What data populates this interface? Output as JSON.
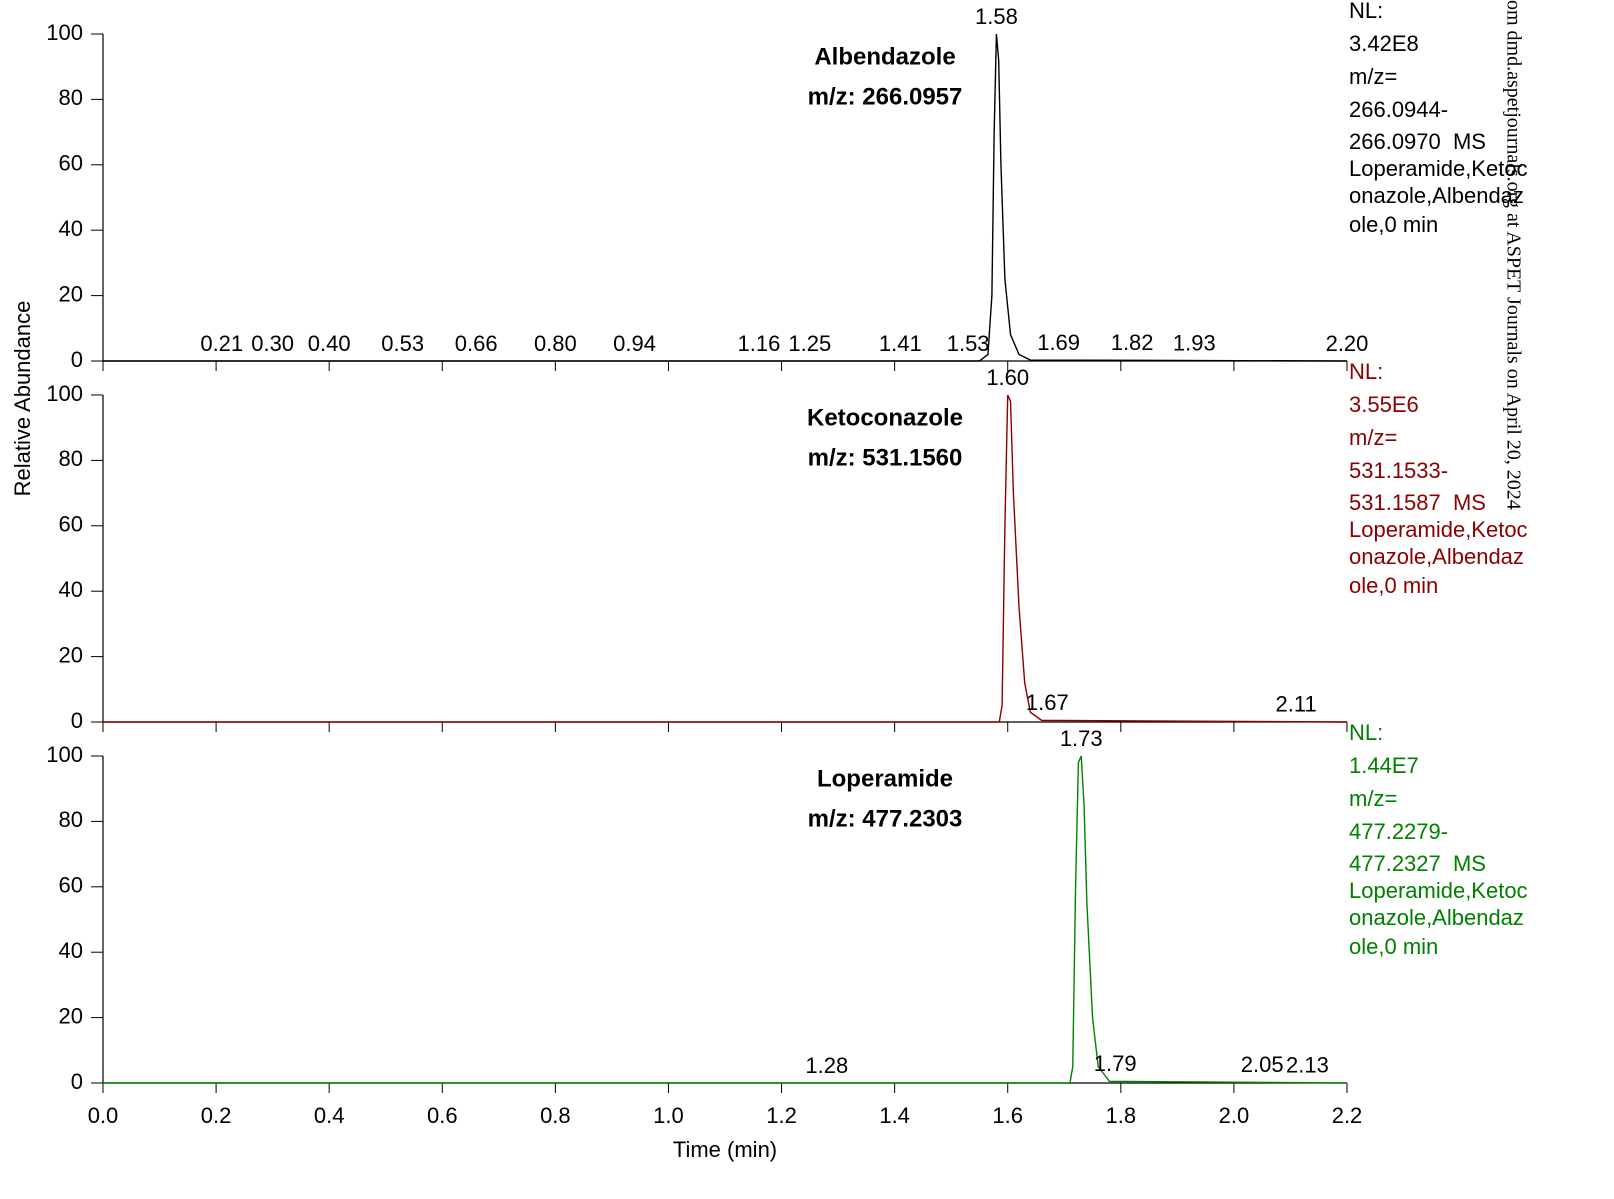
{
  "chart_data": [
    {
      "type": "line",
      "title": "Albendazole",
      "subtitle": "m/z: 266.0957",
      "color": "#000000",
      "nl_text": [
        "NL:",
        "3.42E8",
        "m/z=",
        "266.0944-",
        "266.0970  MS",
        "Loperamide,Ketoc",
        "onazole,Albendaz",
        "ole,0 min"
      ],
      "x": [
        0,
        1.55,
        1.565,
        1.572,
        1.576,
        1.58,
        1.584,
        1.588,
        1.595,
        1.605,
        1.62,
        1.64,
        2.2
      ],
      "values": [
        0,
        0,
        2,
        20,
        70,
        100,
        92,
        60,
        25,
        8,
        2,
        0.3,
        0
      ],
      "peaks": [
        {
          "value": 0.21,
          "label": "0.21"
        },
        {
          "value": 0.3,
          "label": "0.30"
        },
        {
          "value": 0.4,
          "label": "0.40"
        },
        0.53,
        0.66,
        {
          "value": 0.8,
          "label": "0.80"
        },
        0.94,
        1.16,
        1.25,
        1.41,
        1.53,
        1.58,
        1.69,
        1.82,
        1.93,
        {
          "value": 2.2,
          "label": "2.20"
        }
      ],
      "xlim": [
        0,
        2.2
      ],
      "ylim": [
        0,
        100
      ],
      "yticks": [
        0,
        20,
        40,
        60,
        80,
        100
      ]
    },
    {
      "type": "line",
      "title": "Ketoconazole",
      "subtitle": "m/z: 531.1560",
      "color": "#8b0000",
      "nl_text": [
        "NL:",
        "3.55E6",
        "m/z=",
        "531.1533-",
        "531.1587  MS",
        "Loperamide,Ketoc",
        "onazole,Albendaz",
        "ole,0 min"
      ],
      "ylabel": "Relative Abundance",
      "x": [
        0,
        1.585,
        1.59,
        1.595,
        1.6,
        1.605,
        1.61,
        1.62,
        1.63,
        1.64,
        1.66,
        2.2
      ],
      "values": [
        0,
        0,
        5,
        60,
        100,
        98,
        70,
        35,
        12,
        3,
        0.5,
        0
      ],
      "peaks": [
        {
          "value": 1.6,
          "label": "1.60"
        },
        1.67,
        2.11
      ],
      "xlim": [
        0,
        2.2
      ],
      "ylim": [
        0,
        100
      ],
      "yticks": [
        0,
        20,
        40,
        60,
        80,
        100
      ]
    },
    {
      "type": "line",
      "title": "Loperamide",
      "subtitle": "m/z: 477.2303",
      "color": "#008000",
      "nl_text": [
        "NL:",
        "1.44E7",
        "m/z=",
        "477.2279-",
        "477.2327  MS",
        "Loperamide,Ketoc",
        "onazole,Albendaz",
        "ole,0 min"
      ],
      "xlabel": "Time (min)",
      "x": [
        0,
        1.71,
        1.715,
        1.72,
        1.725,
        1.73,
        1.735,
        1.74,
        1.75,
        1.76,
        1.78,
        2.2
      ],
      "values": [
        0,
        0,
        5,
        60,
        98,
        100,
        85,
        55,
        20,
        5,
        0.5,
        0
      ],
      "peaks": [
        1.28,
        1.73,
        1.79,
        2.05,
        2.13
      ],
      "xlim": [
        0,
        2.2
      ],
      "ylim": [
        0,
        100
      ],
      "yticks": [
        0,
        20,
        40,
        60,
        80,
        100
      ],
      "xticks": [
        {
          "value": 0,
          "label": "0.0"
        },
        0.2,
        0.4,
        0.6,
        0.8,
        {
          "value": 1,
          "label": "1.0"
        },
        1.2,
        1.4,
        1.6,
        1.8,
        {
          "value": 2,
          "label": "2.0"
        },
        2.2
      ]
    }
  ],
  "watermark": "om dmd.aspetjournals.org at ASPET Journals on April 20, 2024"
}
